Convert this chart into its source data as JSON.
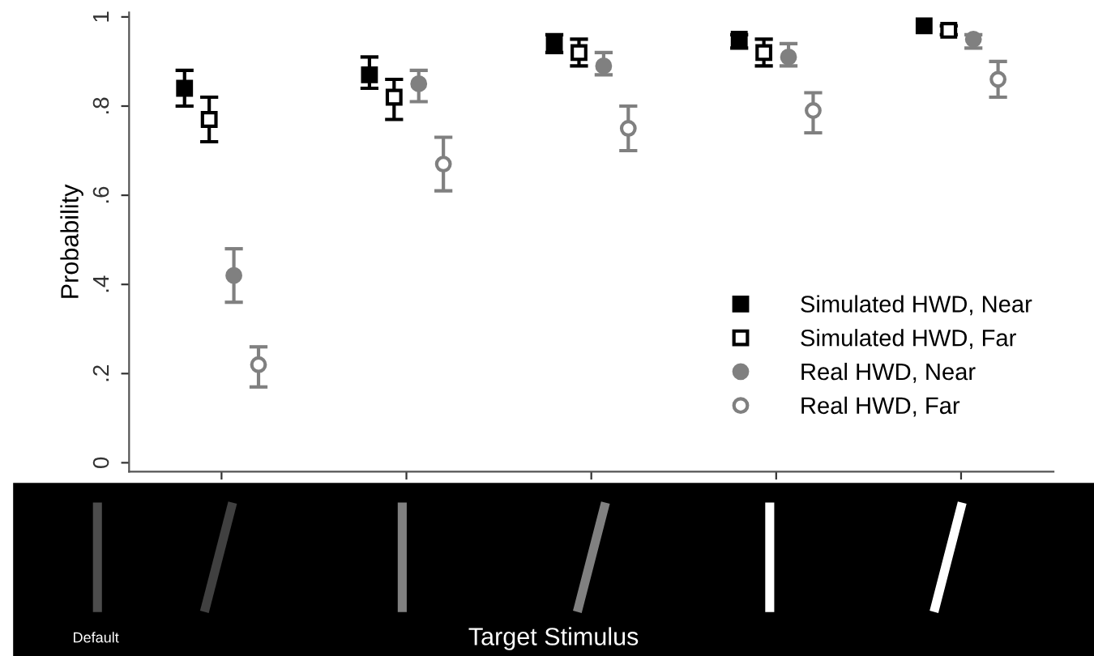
{
  "chart_data": {
    "type": "scatter",
    "ylabel": "Probability",
    "annotations": [
      "Default",
      "Target Stimulus"
    ],
    "categories": [
      null,
      null,
      null,
      null,
      null
    ],
    "series": [
      {
        "name": "Simulated HWD, Near",
        "color": "#000000",
        "marker": "square",
        "values": [
          0.84,
          0.87,
          0.94,
          0.95,
          0.98
        ],
        "errors": [
          [
            0.8,
            0.88
          ],
          [
            0.84,
            0.91
          ],
          [
            0.92,
            0.96
          ],
          [
            0.93,
            0.96
          ],
          null
        ]
      },
      {
        "name": "Simulated HWD, Far",
        "color": "#000000",
        "marker": "square",
        "values": [
          0.77,
          0.82,
          0.92,
          0.92,
          0.97
        ],
        "errors": [
          [
            0.72,
            0.82
          ],
          [
            0.77,
            0.86
          ],
          [
            0.89,
            0.95
          ],
          [
            0.89,
            0.95
          ],
          [
            0.96,
            0.98
          ]
        ]
      },
      {
        "name": "Real HWD, Near",
        "color": "#808080",
        "marker": "circle",
        "values": [
          0.42,
          0.85,
          0.89,
          0.91,
          0.95
        ],
        "errors": [
          [
            0.36,
            0.48
          ],
          [
            0.81,
            0.88
          ],
          [
            0.87,
            0.92
          ],
          [
            0.89,
            0.94
          ],
          [
            0.93,
            0.96
          ]
        ]
      },
      {
        "name": "Real HWD, Far",
        "color": "#808080",
        "marker": "circle",
        "values": [
          0.22,
          0.67,
          0.75,
          0.79,
          0.86
        ],
        "errors": [
          [
            0.17,
            0.26
          ],
          [
            0.61,
            0.73
          ],
          [
            0.7,
            0.8
          ],
          [
            0.74,
            0.83
          ],
          [
            0.82,
            0.9
          ]
        ]
      }
    ],
    "ylim": [
      -0.02,
      1.01
    ],
    "yticks": [
      0,
      {
        "value": 0.2,
        "label": ".2"
      },
      {
        "value": 0.4,
        "label": ".4"
      },
      {
        "value": 0.6,
        "label": ".6"
      },
      {
        "value": 0.8,
        "label": ".8"
      },
      1
    ],
    "grid": false,
    "legend": "right"
  }
}
